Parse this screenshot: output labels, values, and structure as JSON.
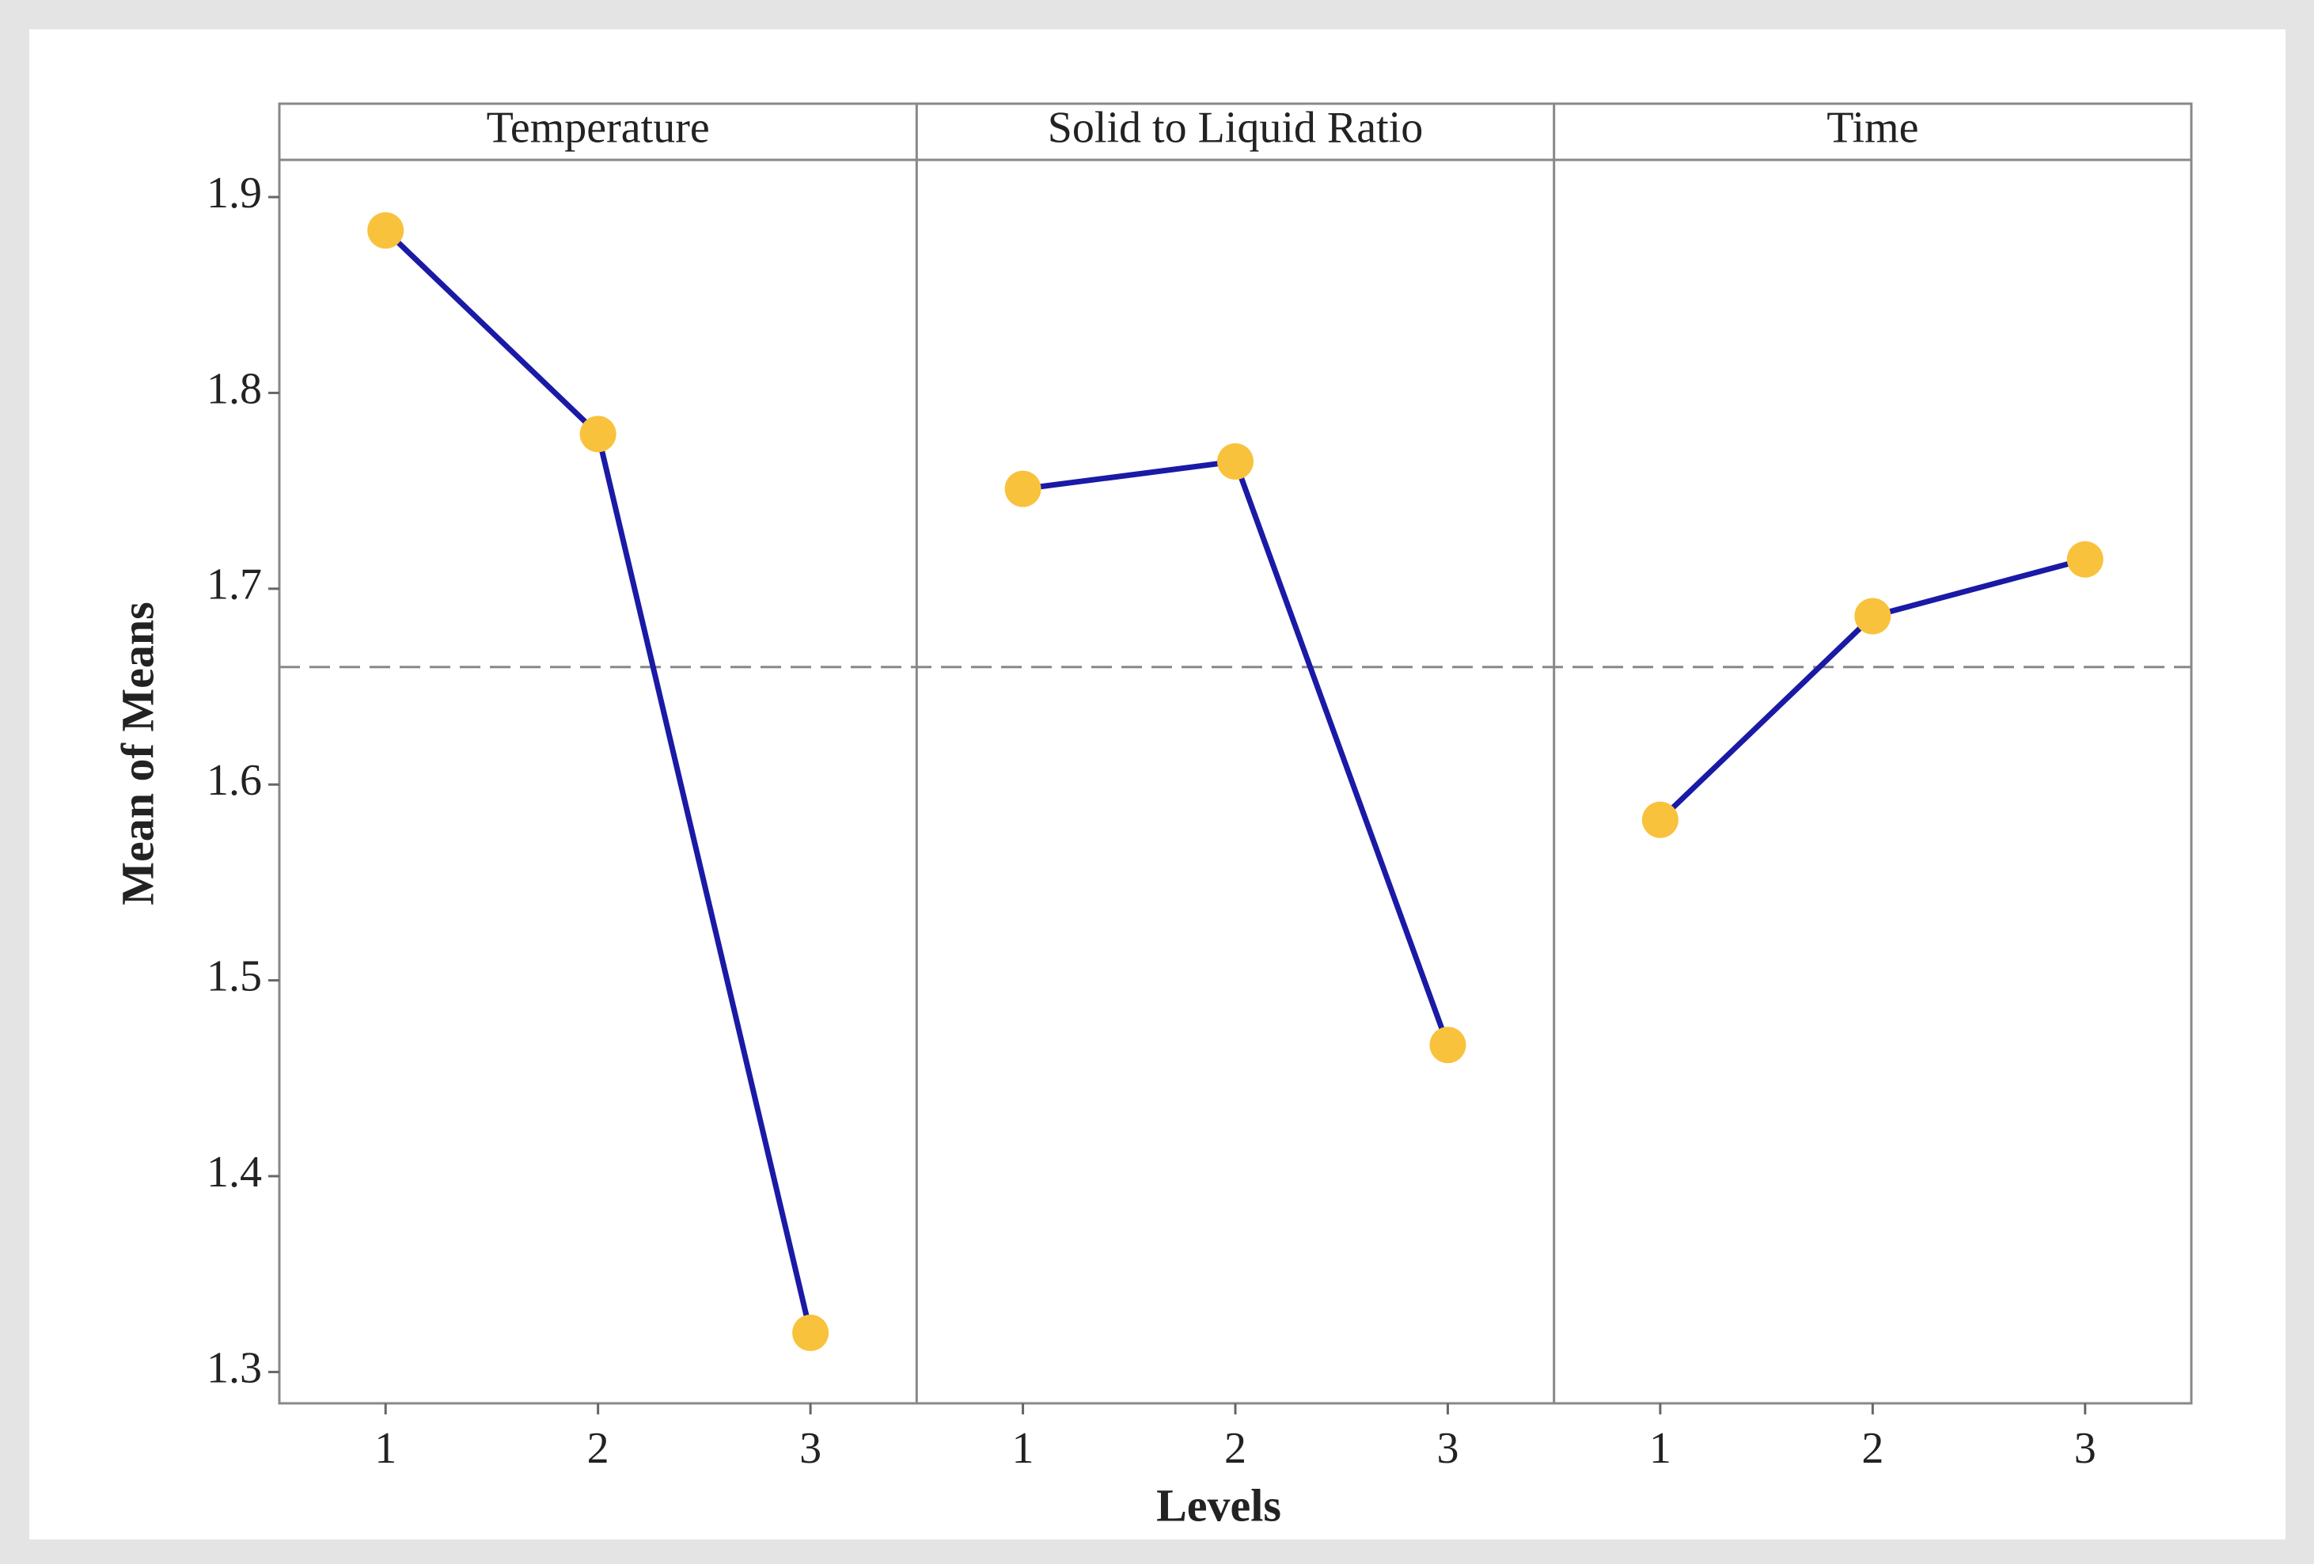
{
  "chart_data": {
    "type": "line",
    "x_label": "Levels",
    "y_label": "Mean of Means",
    "ylim": [
      1.284,
      1.919
    ],
    "yticks": [
      1.3,
      1.4,
      1.5,
      1.6,
      1.7,
      1.8,
      1.9
    ],
    "reference_line": 1.66,
    "line_color": "#1a1aa6",
    "marker_color": "#f9c23c",
    "panels": [
      {
        "title": "Temperature",
        "categories": [
          "1",
          "2",
          "3"
        ],
        "values": [
          1.883,
          1.779,
          1.32
        ]
      },
      {
        "title": "Solid to Liquid Ratio",
        "categories": [
          "1",
          "2",
          "3"
        ],
        "values": [
          1.751,
          1.765,
          1.467
        ]
      },
      {
        "title": "Time",
        "categories": [
          "1",
          "2",
          "3"
        ],
        "values": [
          1.582,
          1.686,
          1.715
        ]
      }
    ]
  }
}
